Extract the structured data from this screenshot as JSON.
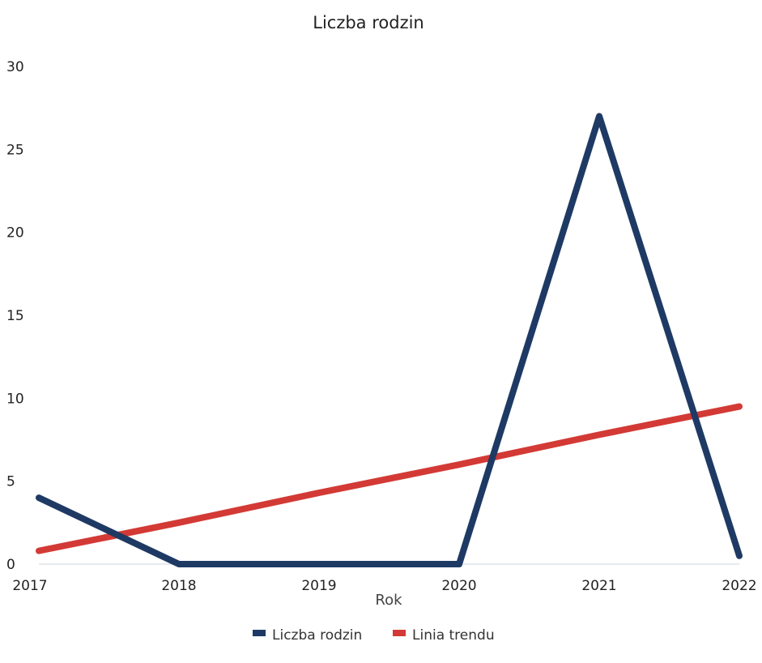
{
  "chart_data": {
    "type": "line",
    "title": "Liczba rodzin",
    "xlabel": "Rok",
    "ylabel": "",
    "categories": [
      "2017",
      "2018",
      "2019",
      "2020",
      "2021",
      "2022"
    ],
    "ylim": [
      0,
      30
    ],
    "yticks": [
      "0",
      "5",
      "10",
      "15",
      "20",
      "25",
      "30"
    ],
    "grid": false,
    "legend_position": "bottom",
    "series": [
      {
        "name": "Liczba rodzin",
        "color": "#1e3a64",
        "values": [
          4,
          0,
          0,
          0,
          27,
          0.5
        ]
      },
      {
        "name": "Linia trendu",
        "color": "#d33a35",
        "values": [
          0.8,
          2.5,
          4.3,
          6.0,
          7.8,
          9.5
        ]
      }
    ]
  }
}
